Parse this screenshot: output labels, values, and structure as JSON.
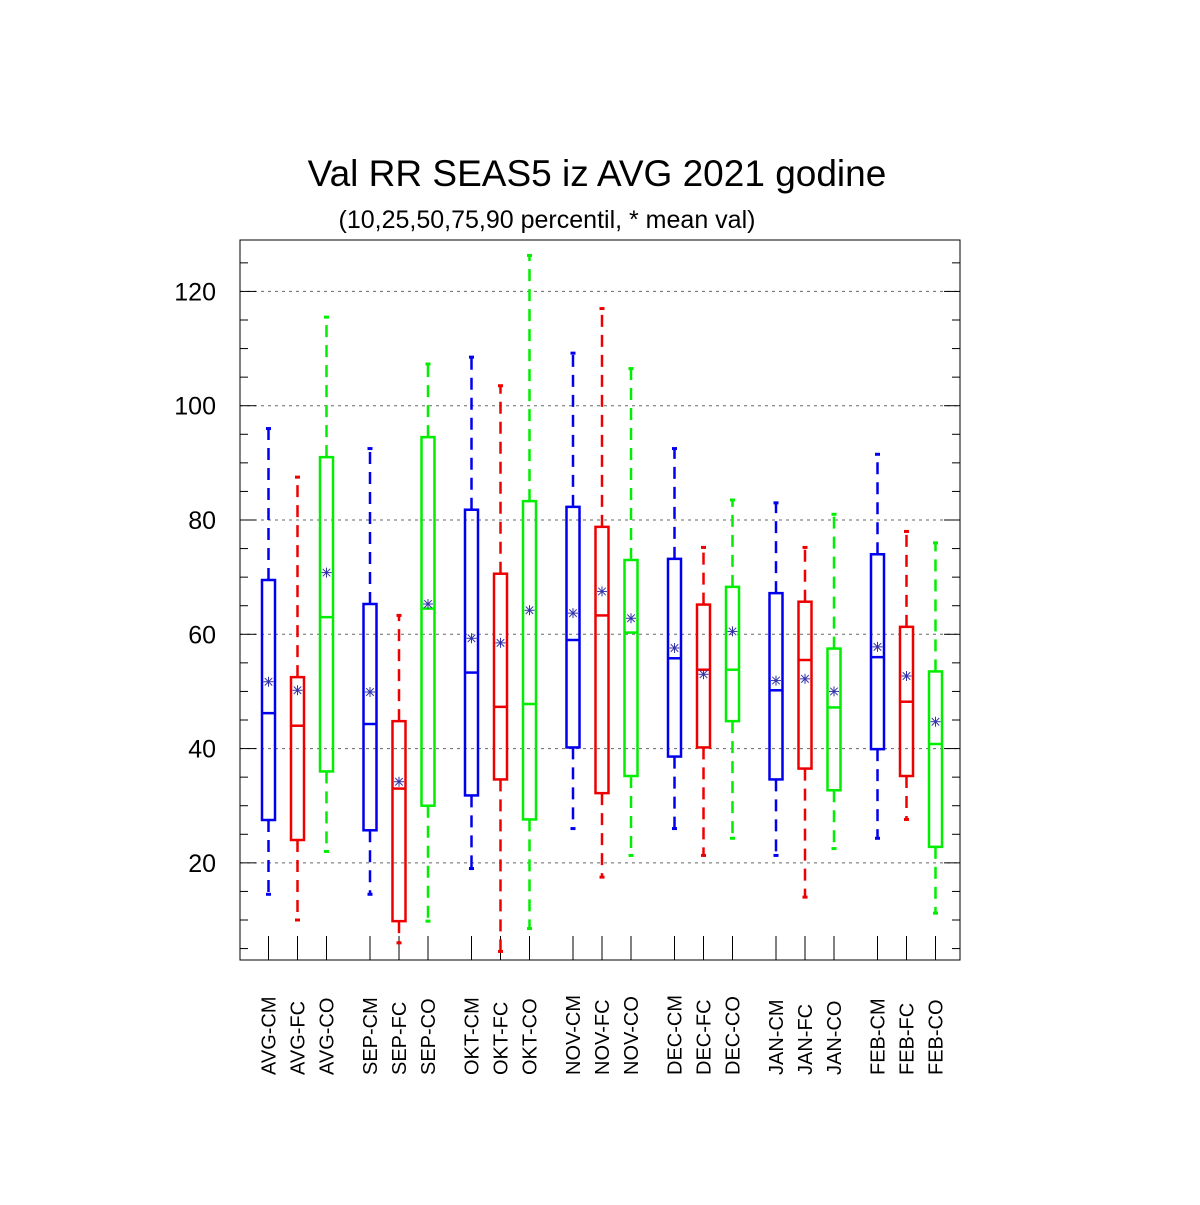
{
  "chart_data": {
    "type": "boxplot",
    "title": "Val RR SEAS5 iz AVG 2021 godine",
    "subtitle": "(10,25,50,75,90 percentil, * mean val)",
    "xlabel": "",
    "ylabel": "",
    "ylim": [
      3,
      129
    ],
    "yticks": [
      20,
      40,
      60,
      80,
      100,
      120
    ],
    "grid": true,
    "legend": "none",
    "colors": {
      "CM": "#0000ee",
      "FC": "#ee0000",
      "CO": "#00ee00",
      "mean": "#3333aa",
      "grid": "#666666"
    },
    "groups": [
      {
        "name": "AVG",
        "items": [
          {
            "label": "AVG-CM",
            "kind": "CM",
            "p10": 14.5,
            "p25": 27.5,
            "p50": 46.2,
            "p75": 69.5,
            "p90": 96,
            "mean": 51.7
          },
          {
            "label": "AVG-FC",
            "kind": "FC",
            "p10": 10,
            "p25": 24,
            "p50": 44,
            "p75": 52.5,
            "p90": 87.5,
            "mean": 50.2
          },
          {
            "label": "AVG-CO",
            "kind": "CO",
            "p10": 22,
            "p25": 36,
            "p50": 63,
            "p75": 91,
            "p90": 115.5,
            "mean": 70.8
          }
        ]
      },
      {
        "name": "SEP",
        "items": [
          {
            "label": "SEP-CM",
            "kind": "CM",
            "p10": 14.5,
            "p25": 25.7,
            "p50": 44.3,
            "p75": 65.3,
            "p90": 92.5,
            "mean": 49.9
          },
          {
            "label": "SEP-FC",
            "kind": "FC",
            "p10": 6,
            "p25": 9.8,
            "p50": 33,
            "p75": 44.8,
            "p90": 63.3,
            "mean": 34.2
          },
          {
            "label": "SEP-CO",
            "kind": "CO",
            "p10": 9.8,
            "p25": 30,
            "p50": 64.5,
            "p75": 94.5,
            "p90": 107.3,
            "mean": 65.3
          }
        ]
      },
      {
        "name": "OKT",
        "items": [
          {
            "label": "OKT-CM",
            "kind": "CM",
            "p10": 19,
            "p25": 31.8,
            "p50": 53.3,
            "p75": 81.8,
            "p90": 108.5,
            "mean": 59.3
          },
          {
            "label": "OKT-FC",
            "kind": "FC",
            "p10": 4.5,
            "p25": 34.6,
            "p50": 47.3,
            "p75": 70.6,
            "p90": 103.5,
            "mean": 58.5
          },
          {
            "label": "OKT-CO",
            "kind": "CO",
            "p10": 8.5,
            "p25": 27.6,
            "p50": 47.8,
            "p75": 83.3,
            "p90": 126.3,
            "mean": 64.2
          }
        ]
      },
      {
        "name": "NOV",
        "items": [
          {
            "label": "NOV-CM",
            "kind": "CM",
            "p10": 26,
            "p25": 40.2,
            "p50": 59,
            "p75": 82.3,
            "p90": 109.2,
            "mean": 63.7
          },
          {
            "label": "NOV-FC",
            "kind": "FC",
            "p10": 17.5,
            "p25": 32.2,
            "p50": 63.3,
            "p75": 78.8,
            "p90": 117,
            "mean": 67.5
          },
          {
            "label": "NOV-CO",
            "kind": "CO",
            "p10": 21.3,
            "p25": 35.2,
            "p50": 60.3,
            "p75": 73,
            "p90": 106.5,
            "mean": 62.8
          }
        ]
      },
      {
        "name": "DEC",
        "items": [
          {
            "label": "DEC-CM",
            "kind": "CM",
            "p10": 26,
            "p25": 38.6,
            "p50": 55.8,
            "p75": 73.2,
            "p90": 92.5,
            "mean": 57.6
          },
          {
            "label": "DEC-FC",
            "kind": "FC",
            "p10": 21.3,
            "p25": 40.2,
            "p50": 53.8,
            "p75": 65.2,
            "p90": 75.2,
            "mean": 53
          },
          {
            "label": "DEC-CO",
            "kind": "CO",
            "p10": 24.3,
            "p25": 44.8,
            "p50": 53.8,
            "p75": 68.3,
            "p90": 83.5,
            "mean": 60.5
          }
        ]
      },
      {
        "name": "JAN",
        "items": [
          {
            "label": "JAN-CM",
            "kind": "CM",
            "p10": 21.3,
            "p25": 34.6,
            "p50": 50.2,
            "p75": 67.2,
            "p90": 83,
            "mean": 51.9
          },
          {
            "label": "JAN-FC",
            "kind": "FC",
            "p10": 14,
            "p25": 36.5,
            "p50": 55.5,
            "p75": 65.7,
            "p90": 75.2,
            "mean": 52.2
          },
          {
            "label": "JAN-CO",
            "kind": "CO",
            "p10": 22.5,
            "p25": 32.7,
            "p50": 47.2,
            "p75": 57.5,
            "p90": 81,
            "mean": 50
          }
        ]
      },
      {
        "name": "FEB",
        "items": [
          {
            "label": "FEB-CM",
            "kind": "CM",
            "p10": 24.3,
            "p25": 39.9,
            "p50": 56,
            "p75": 74,
            "p90": 91.5,
            "mean": 57.8
          },
          {
            "label": "FEB-FC",
            "kind": "FC",
            "p10": 27.6,
            "p25": 35.2,
            "p50": 48.2,
            "p75": 61.3,
            "p90": 78,
            "mean": 52.7
          },
          {
            "label": "FEB-CO",
            "kind": "CO",
            "p10": 11.2,
            "p25": 22.8,
            "p50": 40.8,
            "p75": 53.5,
            "p90": 76,
            "mean": 44.7
          }
        ]
      }
    ]
  }
}
